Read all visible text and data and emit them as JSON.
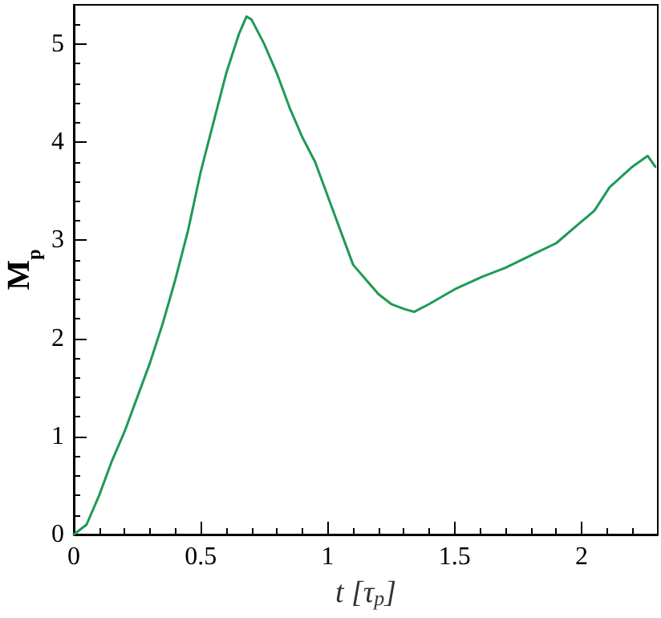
{
  "chart_data": {
    "type": "line",
    "xlabel": "t [τ$_{p}$]",
    "ylabel": "M$_{p}$",
    "series": [
      {
        "color": "#1f9a55",
        "x": [
          0,
          0.05,
          0.1,
          0.15,
          0.2,
          0.25,
          0.3,
          0.35,
          0.4,
          0.45,
          0.5,
          0.55,
          0.6,
          0.65,
          0.68,
          0.7,
          0.75,
          0.8,
          0.85,
          0.9,
          0.95,
          1.0,
          1.05,
          1.1,
          1.15,
          1.2,
          1.25,
          1.3,
          1.34,
          1.4,
          1.5,
          1.61,
          1.7,
          1.82,
          1.9,
          1.99,
          2.05,
          2.11,
          2.2,
          2.26,
          2.29
        ],
        "values": [
          0,
          0.1,
          0.4,
          0.75,
          1.05,
          1.4,
          1.75,
          2.15,
          2.6,
          3.1,
          3.7,
          4.2,
          4.7,
          5.1,
          5.28,
          5.25,
          5.0,
          4.7,
          4.35,
          4.05,
          3.8,
          3.45,
          3.1,
          2.75,
          2.6,
          2.45,
          2.35,
          2.3,
          2.27,
          2.35,
          2.5,
          2.63,
          2.72,
          2.87,
          2.97,
          3.17,
          3.3,
          3.54,
          3.75,
          3.86,
          3.75
        ]
      }
    ],
    "xlim": [
      0,
      2.3
    ],
    "xticks": [
      0,
      0.5,
      1,
      1.5,
      2
    ],
    "ylim": [
      0,
      5.4
    ],
    "yticks": [
      0,
      1,
      2,
      3,
      4,
      5
    ],
    "grid": false,
    "marker": "none",
    "line_style": "solid"
  }
}
